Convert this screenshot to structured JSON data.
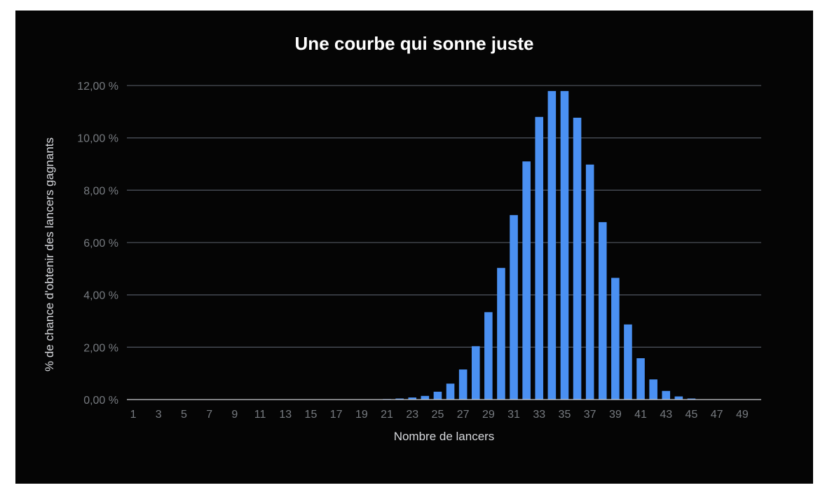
{
  "chart_data": {
    "type": "bar",
    "title": "Une courbe qui sonne juste",
    "xlabel": "Nombre de lancers",
    "ylabel": "% de chance d'obtenir des lancers gagnants",
    "ylim": [
      0,
      12
    ],
    "y_ticks": [
      {
        "value": 0,
        "label": "0,00 %"
      },
      {
        "value": 2,
        "label": "2,00 %"
      },
      {
        "value": 4,
        "label": "4,00 %"
      },
      {
        "value": 6,
        "label": "6,00 %"
      },
      {
        "value": 8,
        "label": "8,00 %"
      },
      {
        "value": 10,
        "label": "10,00 %"
      },
      {
        "value": 12,
        "label": "12,00 %"
      }
    ],
    "x_tick_labels": [
      "1",
      "3",
      "5",
      "7",
      "9",
      "11",
      "13",
      "15",
      "17",
      "19",
      "21",
      "23",
      "25",
      "27",
      "29",
      "31",
      "33",
      "35",
      "37",
      "39",
      "41",
      "43",
      "45",
      "47",
      "49"
    ],
    "categories": [
      "1",
      "2",
      "3",
      "4",
      "5",
      "6",
      "7",
      "8",
      "9",
      "10",
      "11",
      "12",
      "13",
      "14",
      "15",
      "16",
      "17",
      "18",
      "19",
      "20",
      "21",
      "22",
      "23",
      "24",
      "25",
      "26",
      "27",
      "28",
      "29",
      "30",
      "31",
      "32",
      "33",
      "34",
      "35",
      "36",
      "37",
      "38",
      "39",
      "40",
      "41",
      "42",
      "43",
      "44",
      "45",
      "46",
      "47",
      "48",
      "49",
      "50"
    ],
    "values": [
      0,
      0,
      0,
      0,
      0,
      0,
      0,
      0,
      0,
      0,
      0,
      0,
      0,
      0,
      0,
      0,
      0,
      0,
      0,
      0.01,
      0.02,
      0.04,
      0.08,
      0.14,
      0.3,
      0.61,
      1.15,
      2.04,
      3.34,
      5.03,
      7.05,
      9.1,
      10.8,
      11.79,
      11.79,
      10.77,
      8.98,
      6.78,
      4.65,
      2.87,
      1.58,
      0.77,
      0.33,
      0.12,
      0.04,
      0.01,
      0,
      0,
      0,
      0
    ],
    "bar_color": "#4a90f2",
    "grid_color": "#4a4f58",
    "grid": true,
    "legend": "none"
  }
}
